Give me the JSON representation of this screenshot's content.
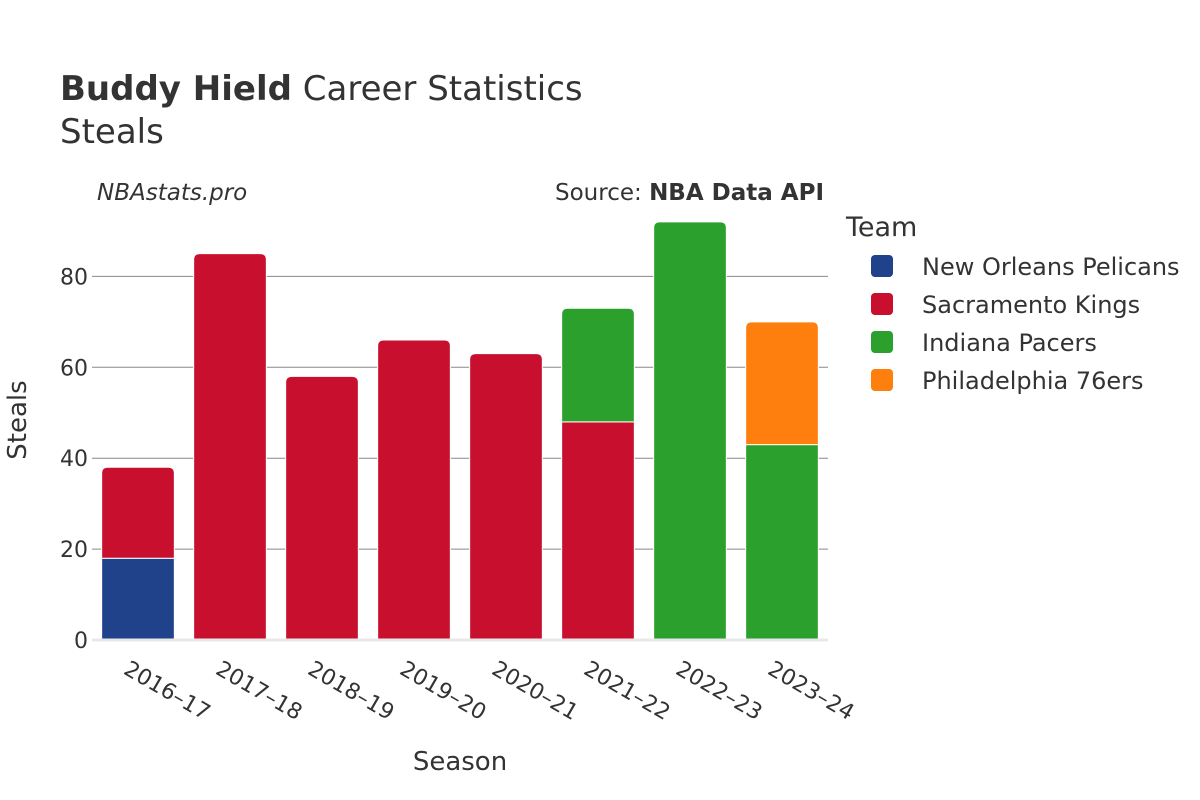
{
  "header": {
    "title_bold": "Buddy Hield",
    "title_rest": " Career Statistics",
    "subtitle": "Steals",
    "credit": "NBAstats.pro",
    "source_prefix": "Source: ",
    "source_bold": "NBA Data API"
  },
  "legend": {
    "title": "Team"
  },
  "colors": {
    "New Orleans Pelicans": "#1f428a",
    "Sacramento Kings": "#c8102e",
    "Indiana Pacers": "#2ca02c",
    "Philadelphia 76ers": "#ff7f0e",
    "grid": "#888888",
    "bar_border": "#ffffff"
  },
  "chart_data": {
    "type": "bar",
    "stacked": true,
    "categories": [
      "2016–17",
      "2017–18",
      "2018–19",
      "2019–20",
      "2020–21",
      "2021–22",
      "2022–23",
      "2023–24"
    ],
    "series": [
      {
        "name": "New Orleans Pelicans",
        "values": [
          18,
          0,
          0,
          0,
          0,
          0,
          0,
          0
        ]
      },
      {
        "name": "Sacramento Kings",
        "values": [
          20,
          85,
          58,
          66,
          63,
          48,
          0,
          0
        ]
      },
      {
        "name": "Indiana Pacers",
        "values": [
          0,
          0,
          0,
          0,
          0,
          25,
          92,
          43
        ]
      },
      {
        "name": "Philadelphia 76ers",
        "values": [
          0,
          0,
          0,
          0,
          0,
          0,
          0,
          27
        ]
      }
    ],
    "xlabel": "Season",
    "ylabel": "Steals",
    "ylim": [
      0,
      96
    ],
    "yticks": [
      0,
      20,
      40,
      60,
      80
    ],
    "grid": true,
    "legend_position": "right"
  }
}
